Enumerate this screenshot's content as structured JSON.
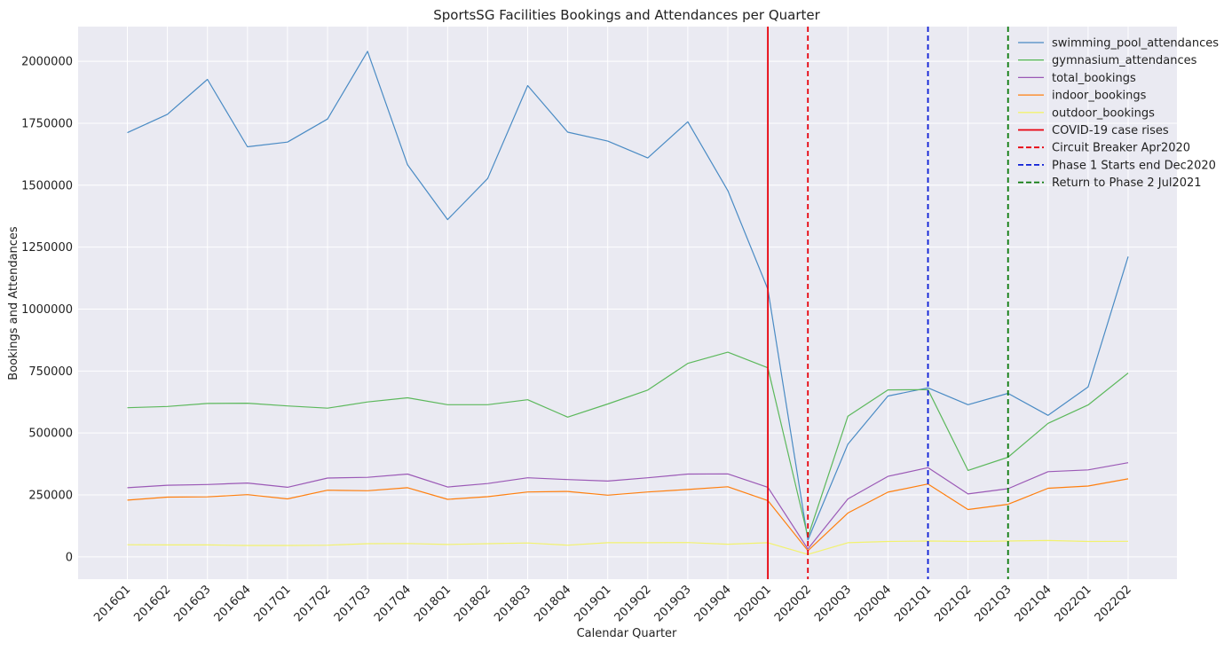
{
  "chart_data": {
    "type": "line",
    "title": "SportsSG Facilities Bookings and Attendances per Quarter",
    "xlabel": "Calendar Quarter",
    "ylabel": "Bookings and Attendances",
    "ylim": [
      -90000,
      2140000
    ],
    "yticks": [
      0,
      250000,
      500000,
      750000,
      1000000,
      1250000,
      1500000,
      1750000,
      2000000
    ],
    "grid": true,
    "legend_position": "top-right",
    "categories": [
      "2016Q1",
      "2016Q2",
      "2016Q3",
      "2016Q4",
      "2017Q1",
      "2017Q2",
      "2017Q3",
      "2017Q4",
      "2018Q1",
      "2018Q2",
      "2018Q3",
      "2018Q4",
      "2019Q1",
      "2019Q2",
      "2019Q3",
      "2019Q4",
      "2020Q1",
      "2020Q2",
      "2020Q3",
      "2020Q4",
      "2021Q1",
      "2021Q2",
      "2021Q3",
      "2021Q4",
      "2022Q1",
      "2022Q2"
    ],
    "series": [
      {
        "name": "swimming_pool_attendances",
        "color": "#4a8bc4",
        "values": [
          1712000,
          1786000,
          1927000,
          1655000,
          1674000,
          1767000,
          2040000,
          1582000,
          1361000,
          1527000,
          1902000,
          1714000,
          1678000,
          1610000,
          1756000,
          1478000,
          1080000,
          68000,
          455000,
          649000,
          682000,
          614000,
          660000,
          571000,
          686000,
          1212000
        ]
      },
      {
        "name": "gymnasium_attendances",
        "color": "#5cb85c",
        "values": [
          602000,
          607000,
          619000,
          620000,
          609000,
          600000,
          625000,
          642000,
          614000,
          614000,
          634000,
          564000,
          617000,
          673000,
          781000,
          826000,
          763000,
          80000,
          568000,
          674000,
          675000,
          349000,
          402000,
          539000,
          613000,
          742000
        ]
      },
      {
        "name": "total_bookings",
        "color": "#9b59b6",
        "values": [
          279000,
          289000,
          292000,
          298000,
          281000,
          318000,
          321000,
          334000,
          282000,
          296000,
          319000,
          312000,
          306000,
          319000,
          334000,
          335000,
          281000,
          32000,
          234000,
          325000,
          360000,
          254000,
          275000,
          344000,
          351000,
          380000
        ]
      },
      {
        "name": "indoor_bookings",
        "color": "#ff7f0e",
        "values": [
          229000,
          241000,
          242000,
          251000,
          234000,
          269000,
          267000,
          279000,
          232000,
          243000,
          262000,
          264000,
          249000,
          262000,
          272000,
          283000,
          227000,
          25000,
          177000,
          261000,
          294000,
          191000,
          212000,
          277000,
          286000,
          315000
        ]
      },
      {
        "name": "outdoor_bookings",
        "color": "#f2f26e",
        "values": [
          49000,
          48000,
          48000,
          46000,
          46000,
          47000,
          53000,
          54000,
          50000,
          53000,
          56000,
          47000,
          57000,
          57000,
          58000,
          51000,
          57000,
          10000,
          57000,
          62000,
          64000,
          62000,
          64000,
          66000,
          62000,
          63000
        ]
      }
    ],
    "vlines": [
      {
        "name": "COVID-19 case rises",
        "at": "2020Q1",
        "color": "#e8000b",
        "dashed": false
      },
      {
        "name": "Circuit Breaker Apr2020",
        "at": "2020Q2",
        "color": "#e8000b",
        "dashed": true
      },
      {
        "name": "Phase 1 Starts end Dec2020",
        "at": "2021Q1",
        "color": "#0a1cd6",
        "dashed": true
      },
      {
        "name": "Return to Phase 2 Jul2021",
        "at": "2021Q3",
        "color": "#0a7a0a",
        "dashed": true
      }
    ]
  }
}
